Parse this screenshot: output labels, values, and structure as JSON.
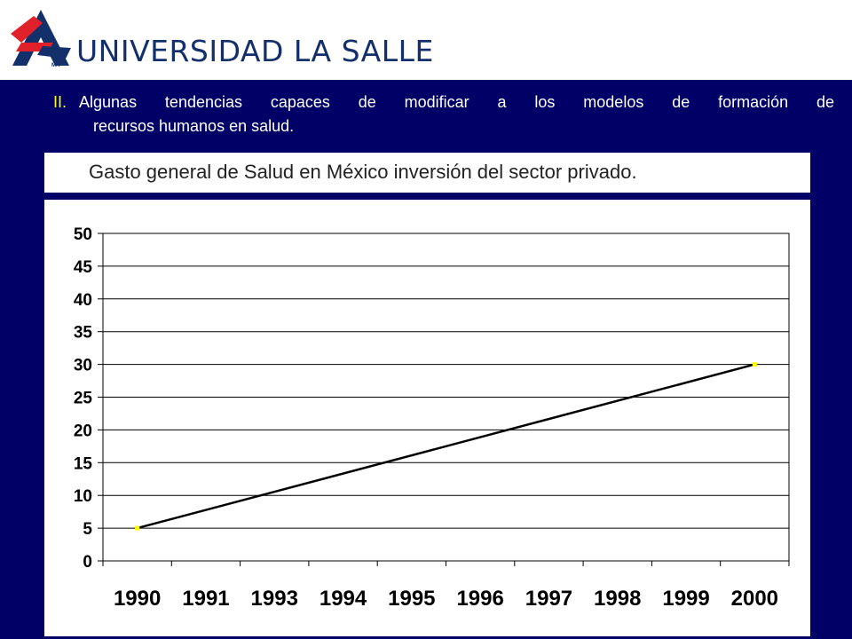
{
  "header": {
    "logo_text": "UNIVERSIDAD LA SALLE",
    "logo_mark": "MR",
    "brand_color": "#14306b",
    "accent_color": "#e0212a"
  },
  "intro": {
    "number": "II.",
    "line1": "Algunas tendencias capaces de modificar a los modelos de formación de",
    "line2": "recursos humanos en salud."
  },
  "chart_data": {
    "type": "line",
    "title": "Gasto general de Salud en México inversión del sector privado.",
    "xlabel": "",
    "ylabel": "",
    "categories": [
      "1990",
      "1991",
      "1993",
      "1994",
      "1995",
      "1996",
      "1997",
      "1998",
      "1999",
      "2000"
    ],
    "series": [
      {
        "points": [
          {
            "x": "1990",
            "y": 5
          },
          {
            "x": "2000",
            "y": 30
          }
        ],
        "line_color": "#000000",
        "marker_color": "#ffff00"
      }
    ],
    "ylim": [
      0,
      50
    ],
    "yticks": [
      0,
      5,
      10,
      15,
      20,
      25,
      30,
      35,
      40,
      45,
      50
    ],
    "grid": true,
    "legend": "none"
  }
}
